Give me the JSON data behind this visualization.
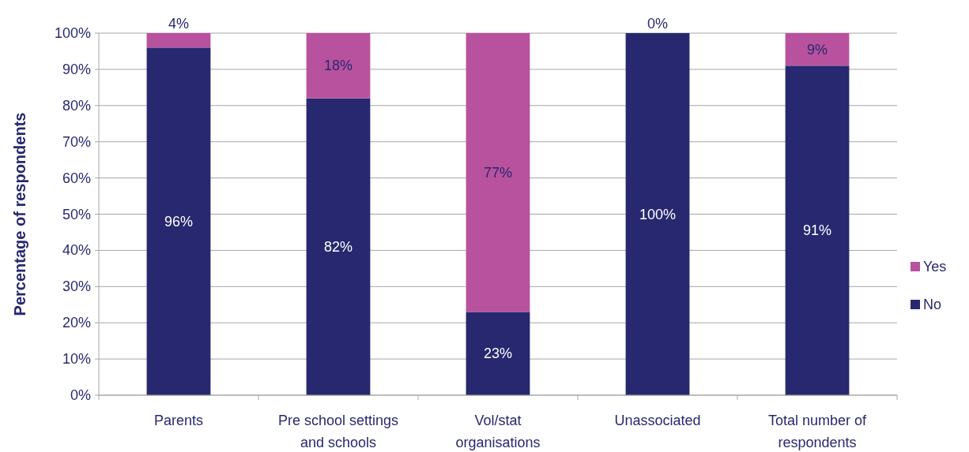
{
  "chart_data": {
    "type": "bar",
    "stacked": true,
    "ylabel": "Percentage of respondents",
    "categories": [
      "Parents",
      "Pre school settings and schools",
      "Vol/stat organisations",
      "Unassociated",
      "Total number of respondents"
    ],
    "series": [
      {
        "name": "No",
        "color": "#27286f",
        "values": [
          96,
          82,
          23,
          100,
          91
        ],
        "value_labels": [
          "96%",
          "82%",
          "23%",
          "100%",
          "91%"
        ]
      },
      {
        "name": "Yes",
        "color": "#b8529e",
        "values": [
          4,
          18,
          77,
          0,
          9
        ],
        "value_labels": [
          "4%",
          "18%",
          "77%",
          "0%",
          "9%"
        ]
      }
    ],
    "ylim": [
      0,
      100
    ],
    "yticks": [
      {
        "value": 0,
        "label": "0%"
      },
      {
        "value": 10,
        "label": "10%"
      },
      {
        "value": 20,
        "label": "20%"
      },
      {
        "value": 30,
        "label": "30%"
      },
      {
        "value": 40,
        "label": "40%"
      },
      {
        "value": 50,
        "label": "50%"
      },
      {
        "value": 60,
        "label": "60%"
      },
      {
        "value": 70,
        "label": "70%"
      },
      {
        "value": 80,
        "label": "80%"
      },
      {
        "value": 90,
        "label": "90%"
      },
      {
        "value": 100,
        "label": "100%"
      }
    ],
    "grid": "y",
    "legend": "right"
  }
}
